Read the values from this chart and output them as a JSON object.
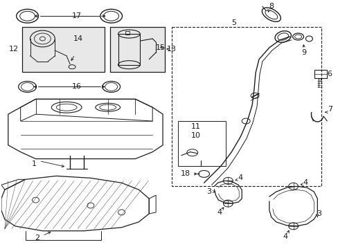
{
  "bg_color": "#ffffff",
  "line_color": "#1a1a1a",
  "gray_fill": "#e8e8e8",
  "gray_bg": "#d8d8d8"
}
